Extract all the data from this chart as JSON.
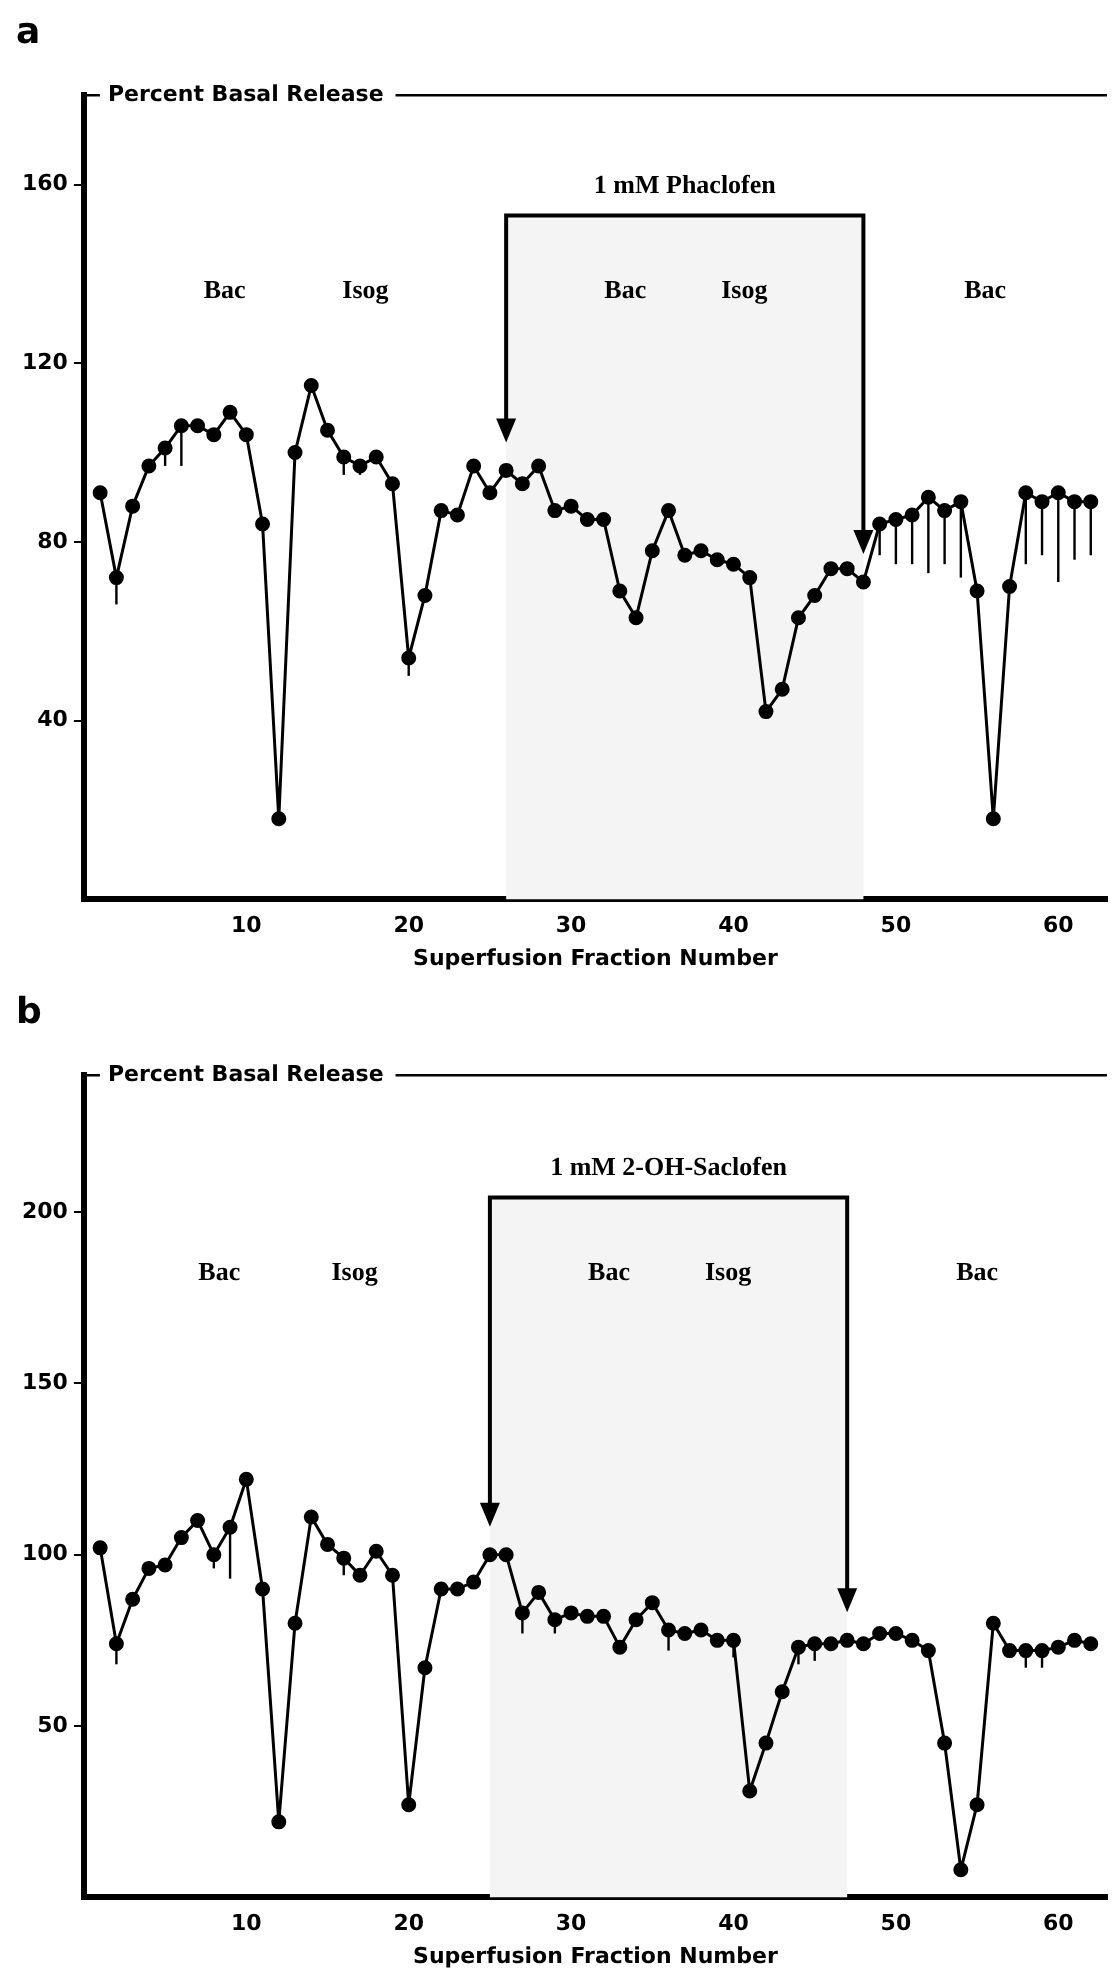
{
  "chart_data": [
    {
      "type": "line",
      "title": "a",
      "ylabel": "Percent Basal Release",
      "xlabel": "Superfusion Fraction Number",
      "x": [
        1,
        2,
        3,
        4,
        5,
        6,
        7,
        8,
        9,
        10,
        11,
        12,
        13,
        14,
        15,
        16,
        17,
        18,
        19,
        20,
        21,
        22,
        23,
        24,
        25,
        26,
        27,
        28,
        29,
        30,
        31,
        32,
        33,
        34,
        35,
        36,
        37,
        38,
        39,
        40,
        41,
        42,
        43,
        44,
        45,
        46,
        47,
        48,
        49,
        50,
        51,
        52,
        53,
        54,
        55,
        56,
        57,
        58,
        59,
        60,
        61,
        62
      ],
      "series": [
        {
          "color": "#000000",
          "values": [
            91,
            72,
            88,
            97,
            101,
            106,
            106,
            104,
            109,
            104,
            84,
            18,
            100,
            115,
            105,
            99,
            97,
            99,
            93,
            54,
            68,
            87,
            86,
            97,
            91,
            96,
            93,
            97,
            87,
            88,
            85,
            85,
            69,
            63,
            78,
            87,
            77,
            78,
            76,
            75,
            72,
            42,
            47,
            63,
            68,
            74,
            74,
            71,
            84,
            85,
            86,
            90,
            87,
            89,
            69,
            18,
            70,
            91,
            89,
            91,
            89,
            89
          ],
          "errors": [
            null,
            [
              66,
              72
            ],
            null,
            null,
            [
              97,
              101
            ],
            [
              97,
              106
            ],
            null,
            null,
            null,
            null,
            null,
            null,
            null,
            null,
            null,
            [
              95,
              99
            ],
            [
              95,
              97
            ],
            null,
            null,
            [
              50,
              54
            ],
            null,
            null,
            null,
            null,
            null,
            null,
            null,
            null,
            null,
            null,
            null,
            null,
            null,
            null,
            null,
            null,
            null,
            null,
            null,
            null,
            null,
            null,
            null,
            null,
            null,
            null,
            null,
            null,
            [
              77,
              84
            ],
            [
              75,
              85
            ],
            [
              75,
              86
            ],
            [
              73,
              90
            ],
            [
              75,
              87
            ],
            [
              72,
              89
            ],
            null,
            null,
            null,
            [
              75,
              91
            ],
            [
              77,
              89
            ],
            [
              71,
              91
            ],
            [
              76,
              89
            ],
            [
              77,
              89
            ]
          ]
        }
      ],
      "xlim": [
        0,
        63
      ],
      "xticks": [
        10,
        20,
        30,
        40,
        50,
        60
      ],
      "ylim": [
        0,
        180
      ],
      "yticks": [
        40,
        80,
        120,
        160
      ],
      "grid": false,
      "legend": false,
      "marker": "circle",
      "line_style": "solid",
      "bands": [
        {
          "axis": "x",
          "from": 26,
          "to": 48,
          "label": "1 mM Phaclofen",
          "color": "#f4f4f4"
        }
      ],
      "annotations": [
        "Bac",
        "Isog",
        "Bac",
        "Isog",
        "Bac"
      ]
    },
    {
      "type": "line",
      "title": "b",
      "ylabel": "Percent Basal Release",
      "xlabel": "Superfusion Fraction Number",
      "x": [
        1,
        2,
        3,
        4,
        5,
        6,
        7,
        8,
        9,
        10,
        11,
        12,
        13,
        14,
        15,
        16,
        17,
        18,
        19,
        20,
        21,
        22,
        23,
        24,
        25,
        26,
        27,
        28,
        29,
        30,
        31,
        32,
        33,
        34,
        35,
        36,
        37,
        38,
        39,
        40,
        41,
        42,
        43,
        44,
        45,
        46,
        47,
        48,
        49,
        50,
        51,
        52,
        53,
        54,
        55,
        56,
        57,
        58,
        59,
        60,
        61,
        62
      ],
      "series": [
        {
          "color": "#000000",
          "values": [
            102,
            74,
            87,
            96,
            97,
            105,
            110,
            100,
            108,
            122,
            90,
            22,
            80,
            111,
            103,
            99,
            94,
            101,
            94,
            27,
            67,
            90,
            90,
            92,
            100,
            100,
            83,
            89,
            81,
            83,
            82,
            82,
            73,
            81,
            86,
            78,
            77,
            78,
            75,
            75,
            31,
            45,
            60,
            73,
            74,
            74,
            75,
            74,
            77,
            77,
            75,
            72,
            45,
            8,
            27,
            80,
            72,
            72,
            72,
            73,
            75,
            74
          ],
          "errors": [
            null,
            [
              68,
              74
            ],
            null,
            null,
            null,
            null,
            null,
            [
              96,
              100
            ],
            [
              93,
              108
            ],
            null,
            null,
            null,
            null,
            null,
            null,
            [
              94,
              99
            ],
            null,
            null,
            null,
            null,
            null,
            null,
            null,
            null,
            null,
            null,
            [
              77,
              83
            ],
            null,
            [
              77,
              81
            ],
            null,
            null,
            null,
            null,
            null,
            null,
            [
              72,
              78
            ],
            null,
            null,
            null,
            [
              70,
              75
            ],
            null,
            null,
            null,
            [
              68,
              73
            ],
            [
              69,
              74
            ],
            null,
            null,
            null,
            null,
            null,
            null,
            null,
            null,
            null,
            null,
            null,
            null,
            [
              67,
              72
            ],
            [
              67,
              72
            ],
            null,
            null,
            null
          ]
        }
      ],
      "xlim": [
        0,
        63
      ],
      "xticks": [
        10,
        20,
        30,
        40,
        50,
        60
      ],
      "ylim": [
        0,
        240
      ],
      "yticks": [
        50,
        100,
        150,
        200
      ],
      "grid": false,
      "legend": false,
      "marker": "circle",
      "line_style": "solid",
      "bands": [
        {
          "axis": "x",
          "from": 25,
          "to": 47,
          "label": "1 mM 2-OH-Saclofen",
          "color": "#f4f4f4"
        }
      ],
      "annotations": [
        "Bac",
        "Isog",
        "Bac",
        "Isog",
        "Bac"
      ]
    }
  ]
}
